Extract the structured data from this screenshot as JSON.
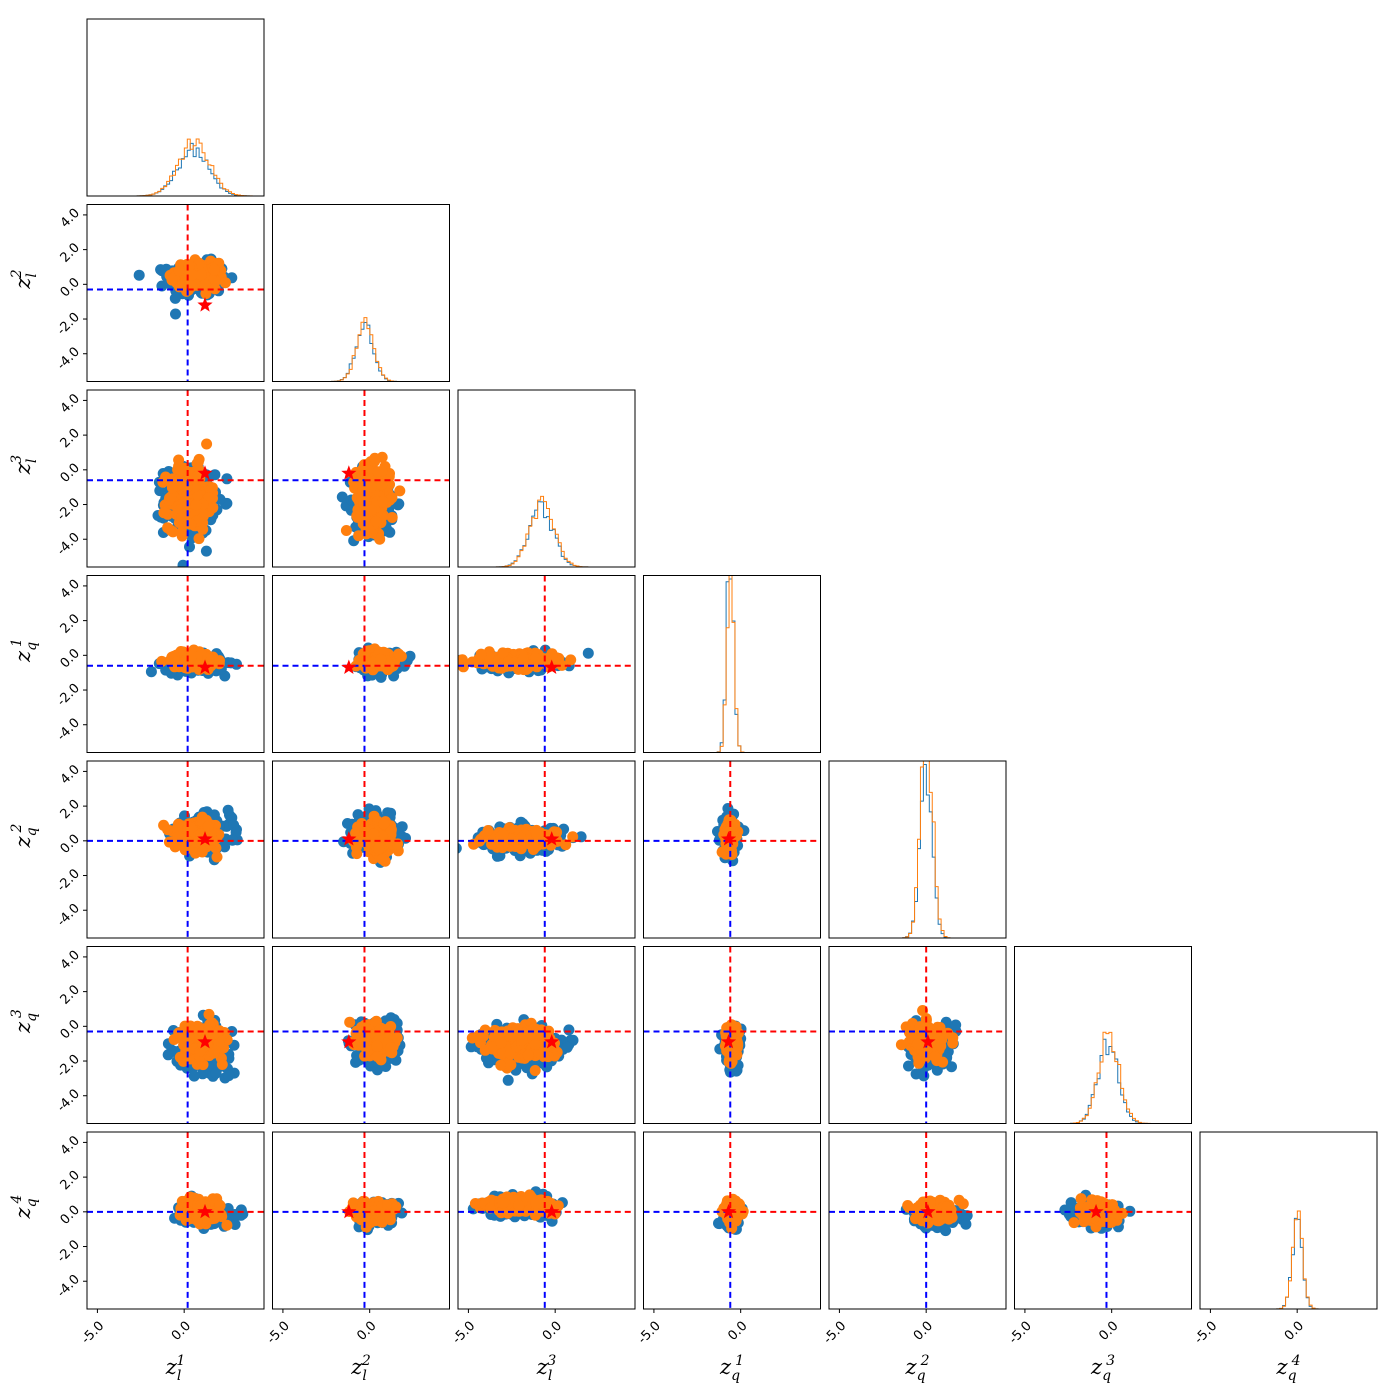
{
  "chart_data": {
    "type": "corner",
    "variables": [
      {
        "base": "z",
        "sub": "l",
        "sup": "1"
      },
      {
        "base": "z",
        "sub": "l",
        "sup": "2"
      },
      {
        "base": "z",
        "sub": "l",
        "sup": "3"
      },
      {
        "base": "z",
        "sub": "q",
        "sup": "1"
      },
      {
        "base": "z",
        "sub": "q",
        "sup": "2"
      },
      {
        "base": "z",
        "sub": "q",
        "sup": "3"
      },
      {
        "base": "z",
        "sub": "q",
        "sup": "4"
      }
    ],
    "xlim": [
      -5.6,
      4.6
    ],
    "ylim": [
      -5.6,
      4.6
    ],
    "x_ticks": [
      -5.0,
      0.0
    ],
    "x_tick_labels": [
      "-5.0",
      "0.0"
    ],
    "y_ticks": [
      4.0,
      2.0,
      0.0,
      -2.0,
      -4.0
    ],
    "y_tick_labels": [
      "4.0",
      "2.0",
      "0.0",
      "-2.0",
      "-4.0"
    ],
    "tick_rotation_deg": 45,
    "series": [
      {
        "color": "#1f77b4"
      },
      {
        "color": "#ff7f0e"
      }
    ],
    "reference_lines": {
      "vertical_color": "#0000ff",
      "horizontal_color": "#ff0000",
      "style": "dashed",
      "crossing_color": "#ff0000",
      "values": [
        0.2,
        -0.3,
        -0.6,
        -0.6,
        0.0,
        -0.3,
        0.0
      ]
    },
    "star": {
      "color": "#ff0000",
      "values": [
        1.2,
        -1.2,
        -0.2,
        -0.7,
        0.1,
        -0.9,
        0.0
      ]
    },
    "diagonal_histograms": [
      {
        "center": 0.5,
        "spread": 0.9
      },
      {
        "center": -0.3,
        "spread": 0.5
      },
      {
        "center": -0.8,
        "spread": 0.7
      },
      {
        "center": -0.6,
        "spread": 0.2
      },
      {
        "center": 0.0,
        "spread": 0.35
      },
      {
        "center": -0.2,
        "spread": 0.6
      },
      {
        "center": 0.0,
        "spread": 0.3
      }
    ],
    "scatter_clusters": [
      {
        "row": 1,
        "col": 0,
        "blue": {
          "cx": 0.8,
          "cy": 0.3,
          "sx": 1.4,
          "sy": 0.8,
          "n": 220
        },
        "orange": {
          "cx": 0.7,
          "cy": 0.5,
          "sx": 1.0,
          "sy": 0.6,
          "n": 200
        }
      },
      {
        "row": 2,
        "col": 0,
        "blue": {
          "cx": 0.3,
          "cy": -1.8,
          "sx": 1.2,
          "sy": 1.6,
          "n": 240
        },
        "orange": {
          "cx": 0.3,
          "cy": -1.6,
          "sx": 1.0,
          "sy": 1.5,
          "n": 220
        }
      },
      {
        "row": 2,
        "col": 1,
        "blue": {
          "cx": 0.3,
          "cy": -1.8,
          "sx": 1.0,
          "sy": 1.6,
          "n": 240
        },
        "orange": {
          "cx": 0.2,
          "cy": -1.6,
          "sx": 0.8,
          "sy": 1.5,
          "n": 220
        }
      },
      {
        "row": 3,
        "col": 0,
        "blue": {
          "cx": 0.6,
          "cy": -0.5,
          "sx": 1.4,
          "sy": 0.4,
          "n": 200
        },
        "orange": {
          "cx": 0.5,
          "cy": -0.3,
          "sx": 1.0,
          "sy": 0.35,
          "n": 180
        }
      },
      {
        "row": 3,
        "col": 1,
        "blue": {
          "cx": 0.6,
          "cy": -0.4,
          "sx": 1.0,
          "sy": 0.5,
          "n": 200
        },
        "orange": {
          "cx": 0.5,
          "cy": -0.2,
          "sx": 0.8,
          "sy": 0.4,
          "n": 180
        }
      },
      {
        "row": 3,
        "col": 2,
        "blue": {
          "cx": -2.0,
          "cy": -0.4,
          "sx": 1.8,
          "sy": 0.4,
          "n": 220
        },
        "orange": {
          "cx": -2.2,
          "cy": -0.3,
          "sx": 1.7,
          "sy": 0.35,
          "n": 200
        }
      },
      {
        "row": 4,
        "col": 0,
        "blue": {
          "cx": 1.0,
          "cy": 0.4,
          "sx": 1.4,
          "sy": 0.8,
          "n": 220
        },
        "orange": {
          "cx": 0.8,
          "cy": 0.3,
          "sx": 1.1,
          "sy": 0.6,
          "n": 200
        }
      },
      {
        "row": 4,
        "col": 1,
        "blue": {
          "cx": 0.5,
          "cy": 0.4,
          "sx": 1.0,
          "sy": 0.8,
          "n": 220
        },
        "orange": {
          "cx": 0.4,
          "cy": 0.3,
          "sx": 0.8,
          "sy": 0.7,
          "n": 200
        }
      },
      {
        "row": 4,
        "col": 2,
        "blue": {
          "cx": -1.8,
          "cy": 0.1,
          "sx": 1.8,
          "sy": 0.6,
          "n": 240
        },
        "orange": {
          "cx": -2.0,
          "cy": 0.1,
          "sx": 1.7,
          "sy": 0.4,
          "n": 220
        }
      },
      {
        "row": 4,
        "col": 3,
        "blue": {
          "cx": -0.6,
          "cy": 0.4,
          "sx": 0.4,
          "sy": 0.9,
          "n": 120
        },
        "orange": {
          "cx": -0.6,
          "cy": 0.3,
          "sx": 0.3,
          "sy": 0.8,
          "n": 110
        }
      },
      {
        "row": 5,
        "col": 0,
        "blue": {
          "cx": 1.2,
          "cy": -1.2,
          "sx": 1.2,
          "sy": 1.0,
          "n": 240
        },
        "orange": {
          "cx": 1.0,
          "cy": -0.9,
          "sx": 1.0,
          "sy": 0.8,
          "n": 220
        }
      },
      {
        "row": 5,
        "col": 1,
        "blue": {
          "cx": 0.5,
          "cy": -1.0,
          "sx": 0.9,
          "sy": 0.9,
          "n": 220
        },
        "orange": {
          "cx": 0.4,
          "cy": -0.8,
          "sx": 0.8,
          "sy": 0.8,
          "n": 200
        }
      },
      {
        "row": 5,
        "col": 2,
        "blue": {
          "cx": -2.0,
          "cy": -1.2,
          "sx": 1.7,
          "sy": 0.9,
          "n": 260
        },
        "orange": {
          "cx": -2.1,
          "cy": -0.9,
          "sx": 1.6,
          "sy": 0.8,
          "n": 240
        }
      },
      {
        "row": 5,
        "col": 3,
        "blue": {
          "cx": -0.5,
          "cy": -1.2,
          "sx": 0.4,
          "sy": 1.0,
          "n": 140
        },
        "orange": {
          "cx": -0.5,
          "cy": -1.0,
          "sx": 0.3,
          "sy": 0.9,
          "n": 120
        }
      },
      {
        "row": 5,
        "col": 4,
        "blue": {
          "cx": 0.3,
          "cy": -1.2,
          "sx": 1.0,
          "sy": 1.0,
          "n": 200
        },
        "orange": {
          "cx": 0.0,
          "cy": -0.9,
          "sx": 0.8,
          "sy": 0.8,
          "n": 180
        }
      },
      {
        "row": 6,
        "col": 0,
        "blue": {
          "cx": 1.2,
          "cy": -0.1,
          "sx": 1.1,
          "sy": 0.5,
          "n": 220
        },
        "orange": {
          "cx": 1.0,
          "cy": 0.0,
          "sx": 0.9,
          "sy": 0.45,
          "n": 200
        }
      },
      {
        "row": 6,
        "col": 1,
        "blue": {
          "cx": 0.3,
          "cy": -0.1,
          "sx": 0.8,
          "sy": 0.5,
          "n": 200
        },
        "orange": {
          "cx": 0.2,
          "cy": 0.0,
          "sx": 0.7,
          "sy": 0.45,
          "n": 180
        }
      },
      {
        "row": 6,
        "col": 2,
        "blue": {
          "cx": -2.0,
          "cy": 0.3,
          "sx": 1.6,
          "sy": 0.45,
          "n": 230
        },
        "orange": {
          "cx": -2.2,
          "cy": 0.4,
          "sx": 1.5,
          "sy": 0.35,
          "n": 210
        }
      },
      {
        "row": 6,
        "col": 3,
        "blue": {
          "cx": -0.5,
          "cy": -0.1,
          "sx": 0.4,
          "sy": 0.6,
          "n": 140
        },
        "orange": {
          "cx": -0.5,
          "cy": 0.0,
          "sx": 0.35,
          "sy": 0.55,
          "n": 120
        }
      },
      {
        "row": 6,
        "col": 4,
        "blue": {
          "cx": 0.6,
          "cy": -0.2,
          "sx": 1.1,
          "sy": 0.5,
          "n": 200
        },
        "orange": {
          "cx": 0.4,
          "cy": 0.0,
          "sx": 0.9,
          "sy": 0.45,
          "n": 180
        }
      },
      {
        "row": 6,
        "col": 5,
        "blue": {
          "cx": -0.8,
          "cy": -0.2,
          "sx": 1.0,
          "sy": 0.5,
          "n": 200
        },
        "orange": {
          "cx": -0.6,
          "cy": -0.1,
          "sx": 0.9,
          "sy": 0.45,
          "n": 180
        }
      }
    ]
  }
}
